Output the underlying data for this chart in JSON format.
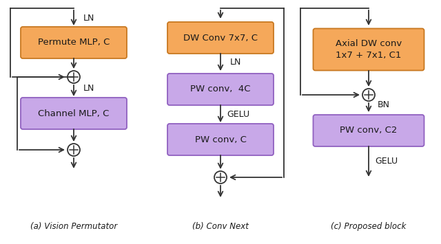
{
  "orange_color": "#F5A85A",
  "purple_color": "#C8A8E8",
  "orange_edge": "#C87820",
  "purple_edge": "#9060C0",
  "text_color": "#1a1a1a",
  "bg_color": "#ffffff",
  "caption_a": "(a) Vision Permutator",
  "caption_b": "(b) Conv Next",
  "caption_c": "(c) Proposed block"
}
